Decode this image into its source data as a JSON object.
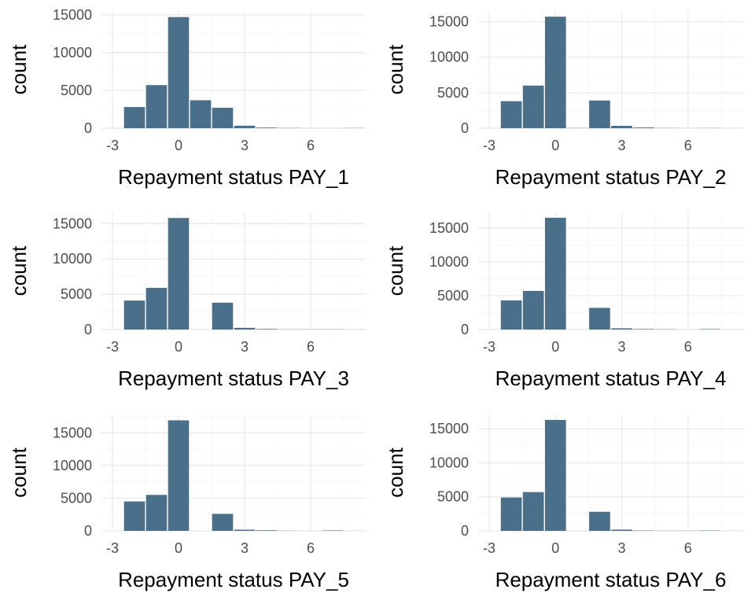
{
  "chart_data": [
    {
      "type": "bar",
      "xlabel": "Repayment status PAY_1",
      "ylabel": "count",
      "x": [
        -2,
        -1,
        0,
        1,
        2,
        3,
        4,
        5,
        6,
        7,
        8
      ],
      "values": [
        2800,
        5700,
        14700,
        3700,
        2700,
        330,
        80,
        30,
        10,
        10,
        20
      ],
      "xlim": [
        -3.5,
        8.5
      ],
      "xticks": [
        -3,
        0,
        3,
        6
      ],
      "xtick_labels": [
        "-3",
        "0",
        "3",
        "6"
      ],
      "ylim": [
        0,
        15500
      ],
      "yticks": [
        0,
        5000,
        10000,
        15000
      ],
      "ytick_labels": [
        "0",
        "5000",
        "10000",
        "15000"
      ],
      "grid": true
    },
    {
      "type": "bar",
      "xlabel": "Repayment status PAY_2",
      "ylabel": "count",
      "x": [
        -2,
        -1,
        0,
        1,
        2,
        3,
        4,
        5,
        6,
        7,
        8
      ],
      "values": [
        3800,
        6000,
        15700,
        30,
        3900,
        330,
        100,
        25,
        10,
        20,
        5
      ],
      "xlim": [
        -3.5,
        8.5
      ],
      "xticks": [
        -3,
        0,
        3,
        6
      ],
      "xtick_labels": [
        "-3",
        "0",
        "3",
        "6"
      ],
      "ylim": [
        0,
        16500
      ],
      "yticks": [
        0,
        5000,
        10000,
        15000
      ],
      "ytick_labels": [
        "0",
        "5000",
        "10000",
        "15000"
      ],
      "grid": true
    },
    {
      "type": "bar",
      "xlabel": "Repayment status PAY_3",
      "ylabel": "count",
      "x": [
        -2,
        -1,
        0,
        1,
        2,
        3,
        4,
        5,
        6,
        7,
        8
      ],
      "values": [
        4100,
        5900,
        15800,
        5,
        3800,
        240,
        80,
        20,
        25,
        30,
        5
      ],
      "xlim": [
        -3.5,
        8.5
      ],
      "xticks": [
        -3,
        0,
        3,
        6
      ],
      "xtick_labels": [
        "-3",
        "0",
        "3",
        "6"
      ],
      "ylim": [
        0,
        16600
      ],
      "yticks": [
        0,
        5000,
        10000,
        15000
      ],
      "ytick_labels": [
        "0",
        "5000",
        "10000",
        "15000"
      ],
      "grid": true
    },
    {
      "type": "bar",
      "xlabel": "Repayment status PAY_4",
      "ylabel": "count",
      "x": [
        -2,
        -1,
        0,
        1,
        2,
        3,
        4,
        5,
        6,
        7,
        8
      ],
      "values": [
        4300,
        5700,
        16500,
        2,
        3200,
        180,
        70,
        35,
        5,
        60,
        2
      ],
      "xlim": [
        -3.5,
        8.5
      ],
      "xticks": [
        -3,
        0,
        3,
        6
      ],
      "xtick_labels": [
        "-3",
        "0",
        "3",
        "6"
      ],
      "ylim": [
        0,
        17300
      ],
      "yticks": [
        0,
        5000,
        10000,
        15000
      ],
      "ytick_labels": [
        "0",
        "5000",
        "10000",
        "15000"
      ],
      "grid": true
    },
    {
      "type": "bar",
      "xlabel": "Repayment status PAY_5",
      "ylabel": "count",
      "x": [
        -2,
        -1,
        0,
        2,
        3,
        4,
        5,
        6,
        7,
        8
      ],
      "values": [
        4500,
        5500,
        16900,
        2600,
        180,
        85,
        20,
        5,
        60,
        1
      ],
      "xlim": [
        -3.5,
        8.5
      ],
      "xticks": [
        -3,
        0,
        3,
        6
      ],
      "xtick_labels": [
        "-3",
        "0",
        "3",
        "6"
      ],
      "ylim": [
        0,
        17800
      ],
      "yticks": [
        0,
        5000,
        10000,
        15000
      ],
      "ytick_labels": [
        "0",
        "5000",
        "10000",
        "15000"
      ],
      "grid": true
    },
    {
      "type": "bar",
      "xlabel": "Repayment status PAY_6",
      "ylabel": "count",
      "x": [
        -2,
        -1,
        0,
        2,
        3,
        4,
        5,
        6,
        7,
        8
      ],
      "values": [
        4900,
        5700,
        16300,
        2800,
        180,
        50,
        15,
        20,
        45,
        2
      ],
      "xlim": [
        -3.5,
        8.5
      ],
      "xticks": [
        -3,
        0,
        3,
        6
      ],
      "xtick_labels": [
        "-3",
        "0",
        "3",
        "6"
      ],
      "ylim": [
        0,
        17100
      ],
      "yticks": [
        0,
        5000,
        10000,
        15000
      ],
      "ytick_labels": [
        "0",
        "5000",
        "10000",
        "15000"
      ],
      "grid": true
    }
  ],
  "colors": {
    "bar": "#4a6f8a",
    "grid_major": "#ebebeb",
    "grid_minor": "#f4f4f4",
    "tick_text": "#4d4d4d",
    "title_text": "#000000"
  }
}
